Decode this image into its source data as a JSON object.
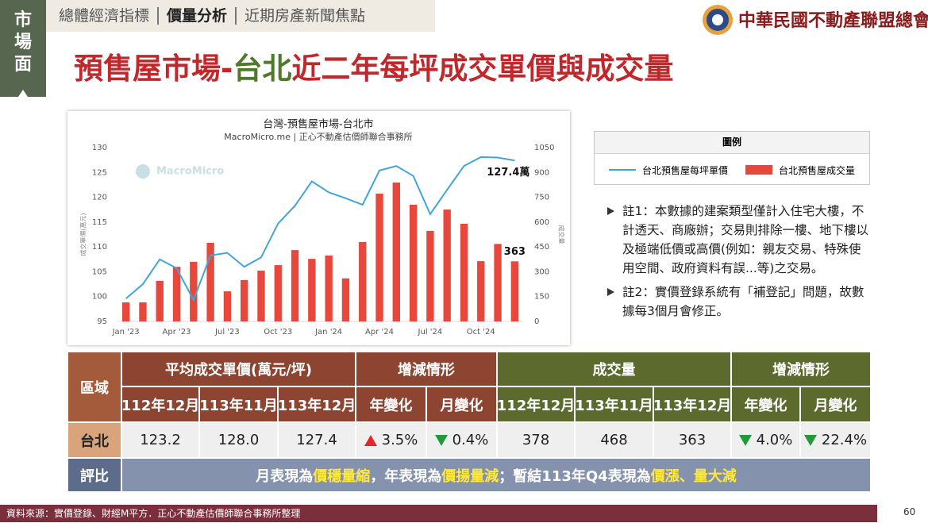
{
  "header": {
    "side_label": "市場面",
    "tabs": [
      "總體經濟指標",
      "價量分析",
      "近期房產新聞焦點"
    ],
    "active_tab": 1,
    "org": "中華民國不動產聯盟總會"
  },
  "title": [
    "預售屋市場-",
    "台北",
    "近二年每坪成交單價與成交量"
  ],
  "chart_data": {
    "type": "combo",
    "title": "台灣-預售屋市場-台北市",
    "subtitle": "MacroMicro.me | 正心不動產估價師聯合事務所",
    "watermark": "MacroMicro",
    "ylabel": "成交單價(萬元)",
    "y2label": "成交量",
    "categories": [
      "Jan '23",
      null,
      null,
      "Apr '23",
      null,
      null,
      "Jul '23",
      null,
      null,
      "Oct '23",
      null,
      null,
      "Jan '24",
      null,
      null,
      "Apr '24",
      null,
      null,
      "Jul '24",
      null,
      null,
      "Oct '24",
      null,
      null
    ],
    "ylim": [
      95,
      130
    ],
    "yticks": [
      95,
      100,
      105,
      110,
      115,
      120,
      125,
      130
    ],
    "y2lim": [
      0,
      1050
    ],
    "y2ticks": [
      0,
      150,
      300,
      450,
      600,
      750,
      900,
      1050
    ],
    "grid": false,
    "series": [
      {
        "name": "台北預售屋每坪單價",
        "type": "line",
        "color": "#42a5d8",
        "values": [
          99.6,
          102.5,
          107.5,
          105.7,
          99.3,
          108.3,
          108.8,
          106.0,
          107.9,
          114.7,
          118.3,
          123.2,
          121.0,
          119.8,
          118.5,
          125.4,
          126.3,
          124.3,
          116.6,
          121.5,
          126.3,
          128.1,
          128.0,
          127.4
        ],
        "value_labels": [
          null,
          null,
          null,
          null,
          null,
          null,
          null,
          null,
          null,
          null,
          null,
          null,
          null,
          null,
          null,
          null,
          null,
          null,
          null,
          null,
          null,
          null,
          null,
          "127.4萬"
        ]
      },
      {
        "name": "台北預售屋成交量",
        "type": "bar",
        "axis": "y2",
        "color": "#e8473b",
        "values": [
          115,
          115,
          245,
          330,
          360,
          475,
          182,
          250,
          307,
          340,
          431,
          378,
          398,
          260,
          480,
          772,
          839,
          705,
          547,
          676,
          590,
          364,
          468,
          363
        ],
        "labeled": [
          23
        ]
      }
    ]
  },
  "legend_title": "圖例",
  "notes": [
    "註1：本數據的建案類型僅計入住宅大樓，不計透天、商廠辦；交易則排除一樓、地下樓以及極端低價或高價(例如：親友交易、特殊使用空間、政府資料有誤...等)之交易。",
    "註2：實價登錄系統有「補登記」問題，故數據每3個月會修正。"
  ],
  "table": {
    "region_header": "區域",
    "groups": [
      {
        "label": "平均成交單價(萬元/坪)",
        "color": "#8d4430"
      },
      {
        "label": "增減情形",
        "color": "#8d4430"
      },
      {
        "label": "成交量",
        "color": "#5d6a2d"
      },
      {
        "label": "增減情形",
        "color": "#5d6a2d"
      }
    ],
    "subheaders": [
      "112年12月",
      "113年11月",
      "113年12月",
      "年變化",
      "月變化",
      "112年12月",
      "113年11月",
      "113年12月",
      "年變化",
      "月變化"
    ],
    "row": {
      "region": "台北",
      "cells": [
        {
          "text": "123.2"
        },
        {
          "text": "128.0"
        },
        {
          "text": "127.4"
        },
        {
          "text": "3.5%",
          "dir": "up"
        },
        {
          "text": "0.4%",
          "dir": "down"
        },
        {
          "text": "378"
        },
        {
          "text": "468"
        },
        {
          "text": "363"
        },
        {
          "text": "4.0%",
          "dir": "down"
        },
        {
          "text": "22.4%",
          "dir": "down"
        }
      ]
    },
    "eval_header": "評比",
    "eval": [
      "月表現為",
      "價穩量縮",
      "，年表現為",
      "價揚量減",
      "；暫結113年Q4表現為",
      "價漲、量大減"
    ]
  },
  "footer": {
    "source": "資料來源：實價登錄、財經M平方．正心不動產估價師聯合事務所整理",
    "page": "60"
  }
}
